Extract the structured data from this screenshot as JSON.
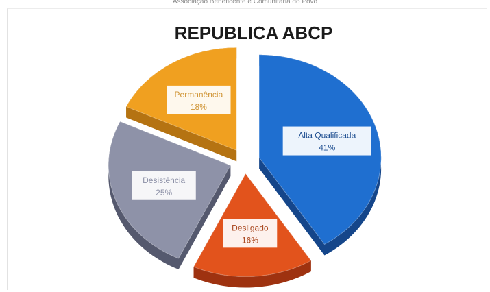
{
  "header": {
    "org_text": "Associação Beneficente e Comunitária do Povo"
  },
  "chart_data": {
    "type": "pie",
    "title": "REPUBLICA ABCP",
    "slices": [
      {
        "label": "Alta Qualificada",
        "value": 41,
        "value_label": "41%",
        "color": "#1f6fd0",
        "side": "#15468a",
        "label_color": "#1f4f91"
      },
      {
        "label": "Desligado",
        "value": 16,
        "value_label": "16%",
        "color": "#e2531c",
        "side": "#9e3210",
        "label_color": "#a8451c"
      },
      {
        "label": "Desistência",
        "value": 25,
        "value_label": "25%",
        "color": "#8e92a8",
        "side": "#55596e",
        "label_color": "#8e92a8"
      },
      {
        "label": "Permanência",
        "value": 18,
        "value_label": "18%",
        "color": "#f0a020",
        "side": "#b57312",
        "label_color": "#d09536"
      }
    ],
    "legend": "none",
    "style": "3d-exploded"
  }
}
